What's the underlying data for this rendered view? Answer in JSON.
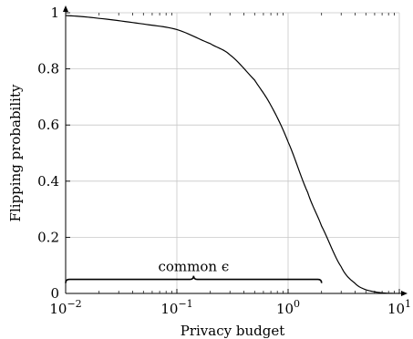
{
  "chart_data": {
    "type": "line",
    "title": "",
    "xlabel": "Privacy budget",
    "ylabel": "Flipping probability",
    "xscale": "log",
    "xlim": [
      0.01,
      10
    ],
    "ylim": [
      0,
      1
    ],
    "grid": true,
    "x_tick_labels": [
      {
        "value": 0.01,
        "base": "10",
        "exp": "−2"
      },
      {
        "value": 0.1,
        "base": "10",
        "exp": "−1"
      },
      {
        "value": 1,
        "base": "10",
        "exp": "0"
      },
      {
        "value": 10,
        "base": "10",
        "exp": "1"
      }
    ],
    "y_tick_labels": [
      {
        "value": 0,
        "label": "0"
      },
      {
        "value": 0.2,
        "label": "0.2"
      },
      {
        "value": 0.4,
        "label": "0.4"
      },
      {
        "value": 0.6,
        "label": "0.6"
      },
      {
        "value": 0.8,
        "label": "0.8"
      },
      {
        "value": 1,
        "label": "1"
      }
    ],
    "series": [
      {
        "color": "#000000",
        "x": [
          0.01,
          0.02,
          0.05,
          0.1,
          0.2,
          0.3,
          0.5,
          0.7,
          1.0,
          1.5,
          2.0,
          3.0,
          4.0,
          5.0,
          7.0,
          10.0
        ],
        "y": [
          0.99,
          0.98,
          0.96,
          0.94,
          0.89,
          0.85,
          0.76,
          0.67,
          0.54,
          0.36,
          0.24,
          0.095,
          0.036,
          0.013,
          0.002,
          0.0001
        ]
      }
    ],
    "annotations": [
      {
        "text": "common ϵ",
        "x_start": 0.01,
        "x_end": 2.0,
        "y": 0.05,
        "style": "brace"
      }
    ]
  }
}
